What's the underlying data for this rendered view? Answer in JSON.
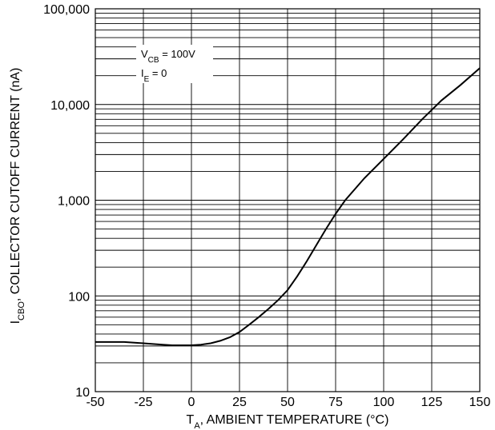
{
  "chart_data": {
    "type": "line",
    "title": "",
    "xlabel": {
      "main": "T",
      "sub": "A",
      "rest": ", AMBIENT TEMPERATURE (°C)"
    },
    "ylabel": {
      "main": "I",
      "sub": "CBO",
      "rest": ", COLLECTOR CUTOFF CURRENT (nA)"
    },
    "xlim": [
      -50,
      150
    ],
    "ylim": [
      10,
      100000
    ],
    "yscale": "log",
    "grid": true,
    "x_ticks": [
      -50,
      -25,
      0,
      25,
      50,
      75,
      100,
      125,
      150
    ],
    "x_tick_labels": [
      "-50",
      "-25",
      "0",
      "25",
      "50",
      "75",
      "100",
      "125",
      "150"
    ],
    "y_ticks": [
      10,
      100,
      1000,
      10000,
      100000
    ],
    "y_tick_labels": [
      "10",
      "100",
      "1,000",
      "10,000",
      "100,000"
    ],
    "annotations": [
      {
        "main": "V",
        "sub": "CB",
        "rest": " = 100V"
      },
      {
        "main": "I",
        "sub": "E",
        "rest": " = 0"
      }
    ],
    "series": [
      {
        "x": [
          -50,
          -35,
          -25,
          -15,
          -10,
          -5,
          0,
          5,
          10,
          15,
          20,
          25,
          30,
          35,
          40,
          45,
          50,
          55,
          60,
          65,
          70,
          75,
          80,
          90,
          100,
          110,
          120,
          130,
          140,
          150
        ],
        "y": [
          33,
          33,
          32,
          31,
          30.5,
          30.5,
          30.5,
          31,
          32,
          34,
          37,
          42,
          50,
          60,
          73,
          90,
          115,
          160,
          230,
          340,
          500,
          720,
          1000,
          1700,
          2700,
          4300,
          7000,
          11000,
          16000,
          24000
        ]
      }
    ]
  }
}
